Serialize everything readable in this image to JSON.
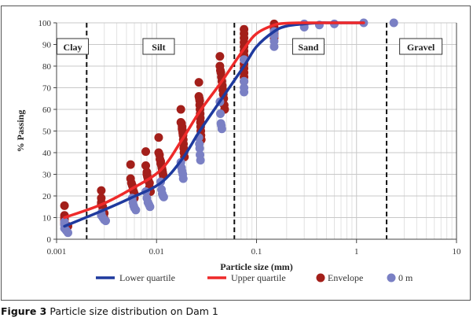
{
  "caption": {
    "label": "Figure 3",
    "text": "Particle size distribution on Dam 1"
  },
  "colors": {
    "lower_quartile": "#1F3A9E",
    "upper_quartile": "#EE2A2A",
    "envelope": "#A31F1A",
    "zero_m": "#7A80C4",
    "grid_major": "#c8c8c8",
    "grid_minor": "#e2e2e2",
    "boundary": "#111111"
  },
  "chart_data": {
    "type": "scatter",
    "title": "",
    "xlabel": "Particle size (mm)",
    "ylabel": "% Passing",
    "xscale": "log",
    "xlim": [
      0.001,
      10
    ],
    "ylim": [
      0,
      100
    ],
    "xticks": [
      0.001,
      0.01,
      0.1,
      1,
      10
    ],
    "xtick_labels": [
      "0.001",
      "0.01",
      "0.1",
      "1",
      "10"
    ],
    "yticks": [
      0,
      10,
      20,
      30,
      40,
      50,
      60,
      70,
      80,
      90,
      100
    ],
    "ytick_labels": [
      "0",
      "10",
      "20",
      "30",
      "40",
      "50",
      "60",
      "70",
      "80",
      "90",
      "100"
    ],
    "grid": true,
    "legend": "bottom",
    "zones": [
      {
        "label": "Clay",
        "from": 0.001,
        "to": 0.002
      },
      {
        "label": "Silt",
        "from": 0.002,
        "to": 0.06
      },
      {
        "label": "Sand",
        "from": 0.06,
        "to": 2
      },
      {
        "label": "Gravel",
        "from": 2,
        "to": 10
      }
    ],
    "boundaries": [
      0.002,
      0.06,
      2
    ],
    "series": [
      {
        "name": "Lower quartile",
        "kind": "line",
        "x": [
          0.0012,
          0.0028,
          0.0055,
          0.011,
          0.018,
          0.027,
          0.045,
          0.075,
          0.1,
          0.15,
          0.2,
          0.3,
          0.425,
          0.6,
          1.18
        ],
        "y": [
          6,
          13,
          19,
          26,
          37,
          50,
          65,
          80,
          89,
          96,
          98.5,
          99.5,
          100,
          100,
          100
        ]
      },
      {
        "name": "Upper quartile",
        "kind": "line",
        "x": [
          0.0012,
          0.0028,
          0.0055,
          0.011,
          0.018,
          0.027,
          0.045,
          0.075,
          0.1,
          0.15,
          0.2,
          0.3,
          0.425,
          0.6,
          1.18
        ],
        "y": [
          10,
          16,
          23,
          32,
          46,
          59,
          73,
          88,
          95,
          99,
          99.8,
          100,
          100,
          100,
          100
        ]
      },
      {
        "name": "Envelope",
        "kind": "points",
        "points": [
          [
            0.0012,
            15.5
          ],
          [
            0.0012,
            11
          ],
          [
            0.0012,
            10
          ],
          [
            0.0012,
            9
          ],
          [
            0.0012,
            8
          ],
          [
            0.0012,
            7
          ],
          [
            0.0013,
            6
          ],
          [
            0.0028,
            22.5
          ],
          [
            0.0028,
            19
          ],
          [
            0.0028,
            17
          ],
          [
            0.0028,
            16
          ],
          [
            0.0029,
            15
          ],
          [
            0.0029,
            14
          ],
          [
            0.003,
            12
          ],
          [
            0.003,
            9.5
          ],
          [
            0.0055,
            34.5
          ],
          [
            0.0055,
            28
          ],
          [
            0.0056,
            26
          ],
          [
            0.0057,
            25
          ],
          [
            0.0058,
            24
          ],
          [
            0.0059,
            22
          ],
          [
            0.006,
            21
          ],
          [
            0.006,
            19
          ],
          [
            0.0078,
            40.5
          ],
          [
            0.0078,
            34
          ],
          [
            0.008,
            31
          ],
          [
            0.008,
            30
          ],
          [
            0.0081,
            29
          ],
          [
            0.0082,
            28
          ],
          [
            0.0083,
            27
          ],
          [
            0.0085,
            26
          ],
          [
            0.0085,
            24
          ],
          [
            0.0087,
            22
          ],
          [
            0.0105,
            47
          ],
          [
            0.0105,
            40
          ],
          [
            0.0107,
            39
          ],
          [
            0.0108,
            37
          ],
          [
            0.011,
            36
          ],
          [
            0.011,
            35
          ],
          [
            0.0112,
            34
          ],
          [
            0.0113,
            33
          ],
          [
            0.0114,
            32
          ],
          [
            0.0115,
            31
          ],
          [
            0.0116,
            30
          ],
          [
            0.0117,
            29
          ],
          [
            0.0175,
            60
          ],
          [
            0.0175,
            54
          ],
          [
            0.0178,
            53.5
          ],
          [
            0.018,
            52
          ],
          [
            0.018,
            51
          ],
          [
            0.0182,
            50
          ],
          [
            0.0183,
            49
          ],
          [
            0.0184,
            48
          ],
          [
            0.0185,
            46
          ],
          [
            0.0186,
            44
          ],
          [
            0.0187,
            42
          ],
          [
            0.0188,
            40
          ],
          [
            0.019,
            38
          ],
          [
            0.0265,
            72.5
          ],
          [
            0.0265,
            66
          ],
          [
            0.0268,
            65
          ],
          [
            0.027,
            64
          ],
          [
            0.027,
            62
          ],
          [
            0.0272,
            60
          ],
          [
            0.0273,
            58
          ],
          [
            0.0274,
            56
          ],
          [
            0.0275,
            54
          ],
          [
            0.0276,
            52
          ],
          [
            0.0277,
            50
          ],
          [
            0.0278,
            48
          ],
          [
            0.028,
            46
          ],
          [
            0.043,
            84.5
          ],
          [
            0.043,
            80
          ],
          [
            0.0435,
            78
          ],
          [
            0.044,
            77
          ],
          [
            0.0445,
            75
          ],
          [
            0.045,
            73
          ],
          [
            0.0455,
            71
          ],
          [
            0.046,
            69
          ],
          [
            0.0465,
            67
          ],
          [
            0.047,
            65
          ],
          [
            0.0475,
            62
          ],
          [
            0.048,
            60
          ],
          [
            0.075,
            97
          ],
          [
            0.075,
            95
          ],
          [
            0.075,
            93
          ],
          [
            0.075,
            91
          ],
          [
            0.075,
            89
          ],
          [
            0.075,
            87
          ],
          [
            0.075,
            85
          ],
          [
            0.075,
            83
          ],
          [
            0.075,
            81
          ],
          [
            0.075,
            79
          ],
          [
            0.075,
            77
          ],
          [
            0.075,
            75
          ],
          [
            0.075,
            73
          ],
          [
            0.15,
            99.5
          ],
          [
            0.15,
            98
          ],
          [
            0.15,
            97
          ],
          [
            0.15,
            96
          ],
          [
            0.15,
            95
          ],
          [
            0.15,
            94
          ],
          [
            0.15,
            93
          ]
        ]
      },
      {
        "name": "0 m",
        "kind": "points",
        "points": [
          [
            0.0012,
            8
          ],
          [
            0.0012,
            6.5
          ],
          [
            0.0012,
            5
          ],
          [
            0.00125,
            4
          ],
          [
            0.0013,
            3
          ],
          [
            0.0028,
            12
          ],
          [
            0.0028,
            11
          ],
          [
            0.0029,
            10
          ],
          [
            0.003,
            9
          ],
          [
            0.0031,
            8.5
          ],
          [
            0.0057,
            19
          ],
          [
            0.0058,
            17
          ],
          [
            0.0059,
            15.5
          ],
          [
            0.006,
            14.5
          ],
          [
            0.0062,
            13.5
          ],
          [
            0.0078,
            22
          ],
          [
            0.008,
            19
          ],
          [
            0.0082,
            17
          ],
          [
            0.0084,
            16
          ],
          [
            0.0086,
            15
          ],
          [
            0.011,
            26.5
          ],
          [
            0.0112,
            23
          ],
          [
            0.0114,
            21
          ],
          [
            0.0116,
            20
          ],
          [
            0.0118,
            19.5
          ],
          [
            0.0175,
            35.5
          ],
          [
            0.0178,
            33
          ],
          [
            0.018,
            31.5
          ],
          [
            0.0183,
            30
          ],
          [
            0.0185,
            28
          ],
          [
            0.0265,
            47
          ],
          [
            0.0268,
            44
          ],
          [
            0.027,
            42
          ],
          [
            0.0272,
            39
          ],
          [
            0.0275,
            36.5
          ],
          [
            0.043,
            63.5
          ],
          [
            0.0435,
            58
          ],
          [
            0.044,
            53.5
          ],
          [
            0.0445,
            52.5
          ],
          [
            0.045,
            51
          ],
          [
            0.075,
            83
          ],
          [
            0.075,
            73
          ],
          [
            0.075,
            70
          ],
          [
            0.075,
            68
          ],
          [
            0.15,
            96
          ],
          [
            0.15,
            94
          ],
          [
            0.15,
            91.5
          ],
          [
            0.15,
            89
          ],
          [
            0.3,
            99.5
          ],
          [
            0.3,
            98
          ],
          [
            0.425,
            99
          ],
          [
            0.6,
            99.5
          ],
          [
            1.18,
            100
          ],
          [
            2.36,
            100
          ]
        ]
      }
    ]
  }
}
